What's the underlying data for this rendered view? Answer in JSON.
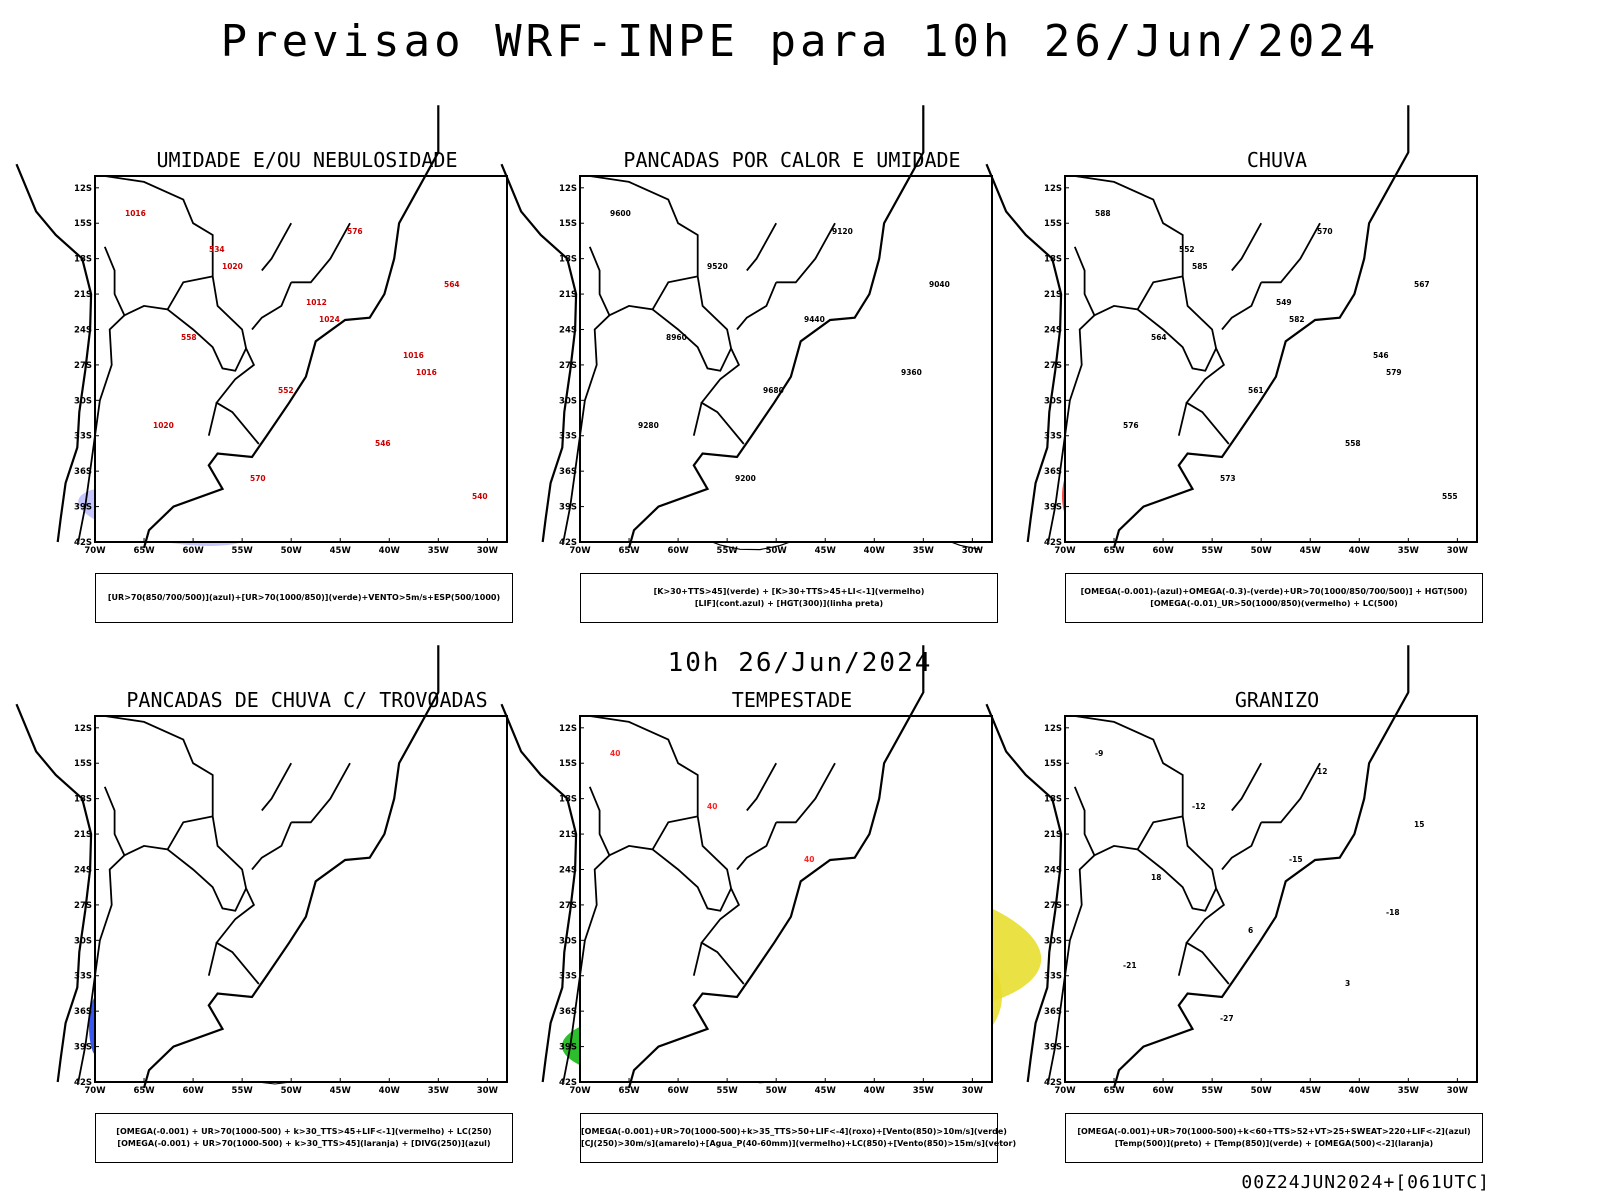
{
  "header": {
    "title": "Previsao WRF-INPE  para 10h 26/Jun/2024",
    "mid_date": "10h 26/Jun/2024",
    "run_id": "00Z24JUN2024+[061UTC]"
  },
  "axes": {
    "lat_labels": [
      "12S",
      "15S",
      "18S",
      "21S",
      "24S",
      "27S",
      "30S",
      "33S",
      "36S",
      "39S",
      "42S"
    ],
    "lon_labels": [
      "70W",
      "65W",
      "60W",
      "55W",
      "50W",
      "45W",
      "40W",
      "35W",
      "30W"
    ]
  },
  "panels": [
    {
      "title": "UMIDADE E/OU NEBULOSIDADE",
      "legend": [
        "[UR>70(850/700/500)](azul)+[UR>70(1000/850)](verde)+VENTO>5m/s+ESP(500/1000)"
      ],
      "contour_labels": [
        "1016",
        "1020",
        "1024",
        "1016",
        "1020",
        "570",
        "576",
        "564",
        "558",
        "552",
        "546",
        "540",
        "534",
        "1012",
        "1016"
      ]
    },
    {
      "title": "PANCADAS POR CALOR E UMIDADE",
      "legend": [
        "[K>30+TTS>45](verde) + [K>30+TTS>45+LI<-1](vermelho)",
        "[LIF](cont.azul) + [HGT(300)](linha preta)"
      ],
      "contour_labels": [
        "9600",
        "9520",
        "9440",
        "9360",
        "9280",
        "9200",
        "9120",
        "9040",
        "8960",
        "9680"
      ]
    },
    {
      "title": "CHUVA",
      "legend": [
        "[OMEGA(-0.001)-(azul)+OMEGA(-0.3)-(verde)+UR>70(1000/850/700/500)] + HGT(500)",
        "[OMEGA(-0.01)_UR>50(1000/850)(vermelho) + LC(500)"
      ],
      "contour_labels": [
        "588",
        "585",
        "582",
        "579",
        "576",
        "573",
        "570",
        "567",
        "564",
        "561",
        "558",
        "555",
        "552",
        "549",
        "546"
      ]
    },
    {
      "title": "PANCADAS DE CHUVA C/ TROVOADAS",
      "legend": [
        "[OMEGA(-0.001) + UR>70(1000-500) + k>30_TTS>45+LIF<-1](vermelho) + LC(250)",
        "[OMEGA(-0.001) + UR>70(1000-500) + k>30_TTS>45](laranja) + [DIVG(250)](azul)"
      ],
      "contour_labels": []
    },
    {
      "title": "TEMPESTADE",
      "legend": [
        "[OMEGA(-0.001)+UR>70(1000-500)+k>35_TTS>50+LIF<-4](roxo)+[Vento(850)>10m/s](verde)",
        "[CJ(250)>30m/s](amarelo)+[Agua_P(40-60mm)](vermelho)+LC(850)+[Vento(850)>15m/s](vetor)"
      ],
      "contour_labels": [
        "40",
        "40",
        "40"
      ]
    },
    {
      "title": "GRANIZO",
      "legend": [
        "[OMEGA(-0.001)+UR>70(1000-500)+k<60+TTS>52+VT>25+SWEAT>220+LIF<-2](azul)",
        "[Temp(500)](preto) + [Temp(850)](verde) + [OMEGA(500)<-2](laranja)"
      ],
      "contour_labels": [
        "-9",
        "-12",
        "-15",
        "-18",
        "-21",
        "-27",
        "12",
        "15",
        "18",
        "6",
        "3"
      ]
    }
  ]
}
